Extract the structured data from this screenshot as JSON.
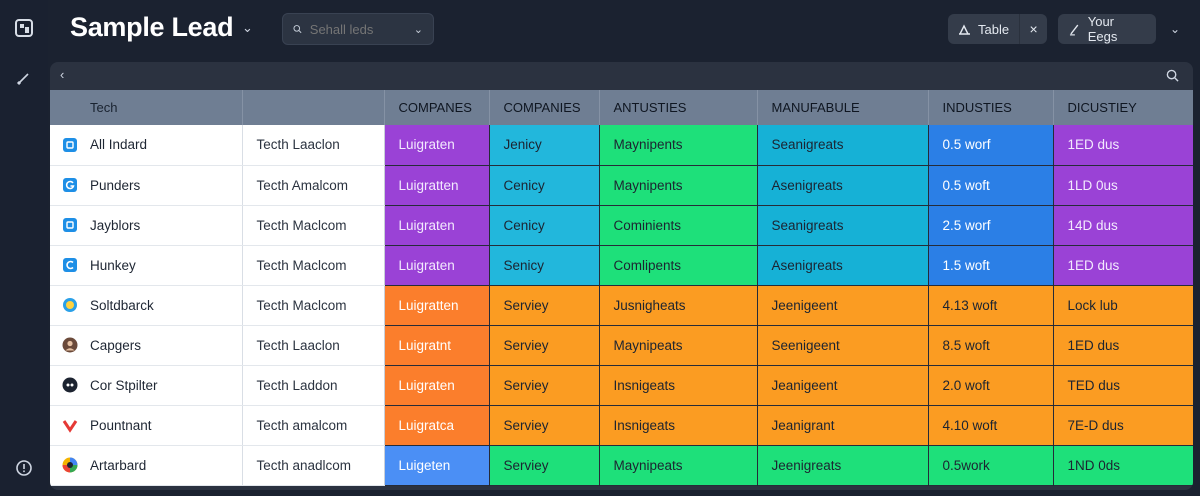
{
  "app": {
    "title": "Sample Lead"
  },
  "search": {
    "placeholder": "Sehall leds"
  },
  "toolbar": {
    "view_label": "Table",
    "close_label": "×",
    "user_label": "Your Eegs"
  },
  "table": {
    "headers": [
      "Tech",
      "",
      "COMPANES",
      "COMPANIES",
      "ANTUSTIES",
      "MANUFABULE",
      "INDUSTIES",
      "DICUSTIEY"
    ],
    "rows": [
      {
        "icon": "square-app-icon",
        "name": "All Indard",
        "company": "Tecth Laaclon",
        "c3": "Luigraten",
        "c4": "Jenicy",
        "c5": "Maynipents",
        "c6": "Seanigreats",
        "c7": "0.5 worf",
        "c8": "1ED dus"
      },
      {
        "icon": "g-logo-icon",
        "name": "Punders",
        "company": "Tecth Amalcom",
        "c3": "Luigratten",
        "c4": "Cenicy",
        "c5": "Maynipents",
        "c6": "Asenigreats",
        "c7": "0.5 woft",
        "c8": "1LD 0us"
      },
      {
        "icon": "square-app-icon",
        "name": "Jayblors",
        "company": "Tecth Maclcom",
        "c3": "Luigraten",
        "c4": "Cenicy",
        "c5": "Cominients",
        "c6": "Seanigreats",
        "c7": "2.5 worf",
        "c8": "14D dus"
      },
      {
        "icon": "c-logo-icon",
        "name": "Hunkey",
        "company": "Tecth Maclcom",
        "c3": "Luigraten",
        "c4": "Senicy",
        "c5": "Comlipents",
        "c6": "Asenigreats",
        "c7": "1.5 woft",
        "c8": "1ED dus"
      },
      {
        "icon": "circle-logo-icon",
        "name": "Soltdbarck",
        "company": "Tecth Maclcom",
        "c3": "Luigratten",
        "c4": "Serviey",
        "c5": "Jusnigheats",
        "c6": "Jeenigeent",
        "c7": "4.13 woft",
        "c8": "Lock lub"
      },
      {
        "icon": "avatar-icon",
        "name": "Capgers",
        "company": "Tecth Laaclon",
        "c3": "Luigratnt",
        "c4": "Serviey",
        "c5": "Maynipeats",
        "c6": "Seenigeent",
        "c7": "8.5 woft",
        "c8": "1ED dus"
      },
      {
        "icon": "dark-circle-logo-icon",
        "name": "Cor Stpilter",
        "company": "Tecth Laddon",
        "c3": "Luigraten",
        "c4": "Serviey",
        "c5": "Insnigeats",
        "c6": "Jeanigeent",
        "c7": "2.0 woft",
        "c8": "TED dus"
      },
      {
        "icon": "v-logo-icon",
        "name": "Pountnant",
        "company": "Tecth amalcom",
        "c3": "Luigratca",
        "c4": "Serviey",
        "c5": "Insnigeats",
        "c6": "Jeanigrant",
        "c7": "4.10 woft",
        "c8": "7E-D dus"
      },
      {
        "icon": "color-wheel-icon",
        "name": "Artarbard",
        "company": "Tecth anadlcom",
        "c3": "Luigeten",
        "c4": "Serviey",
        "c5": "Maynipeats",
        "c6": "Jeenigreats",
        "c7": "0.5work",
        "c8": "1ND 0ds"
      }
    ],
    "cell_colors": [
      [
        "#9a42d6",
        "#22b7dc",
        "#1ee07a",
        "#16b1d6",
        "#2b7fe6",
        "#9a42d6"
      ],
      [
        "#9a42d6",
        "#22b7dc",
        "#1ee07a",
        "#16b1d6",
        "#2b7fe6",
        "#9a42d6"
      ],
      [
        "#9a42d6",
        "#22b7dc",
        "#1ee07a",
        "#16b1d6",
        "#2b7fe6",
        "#9a42d6"
      ],
      [
        "#9a42d6",
        "#22b7dc",
        "#1ee07a",
        "#16b1d6",
        "#2b7fe6",
        "#9a42d6"
      ],
      [
        "#fb7e2c",
        "#fb9c22",
        "#fb9c22",
        "#fb9c22",
        "#fb9c22",
        "#fb9c22"
      ],
      [
        "#fb7e2c",
        "#fb9c22",
        "#fb9c22",
        "#fb9c22",
        "#fb9c22",
        "#fb9c22"
      ],
      [
        "#fb7e2c",
        "#fb9c22",
        "#fb9c22",
        "#fb9c22",
        "#fb9c22",
        "#fb9c22"
      ],
      [
        "#fb7e2c",
        "#fb9c22",
        "#fb9c22",
        "#fb9c22",
        "#fb9c22",
        "#fb9c22"
      ],
      [
        "#4b8ff5",
        "#1ee07a",
        "#1ee07a",
        "#1ee07a",
        "#1ee07a",
        "#1ee07a"
      ]
    ]
  },
  "colors": {
    "background": "#1b2230",
    "panel": "#2b3240",
    "header_row": "#6f7e93"
  }
}
